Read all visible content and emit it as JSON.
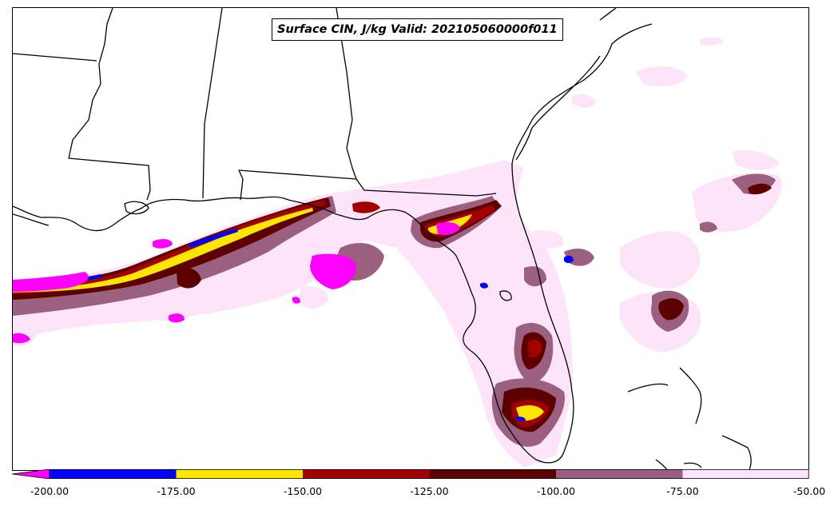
{
  "map": {
    "title": "Surface CIN, J/kg Valid: 202105060000f011",
    "field": "Surface CIN",
    "units": "J/kg",
    "valid": "202105060000f011"
  },
  "colorbar": {
    "extend": "min",
    "extend_color": "#ff00ff",
    "bins": [
      {
        "from": -200,
        "to": -175,
        "color": "#0000ff"
      },
      {
        "from": -175,
        "to": -150,
        "color": "#ffe600"
      },
      {
        "from": -150,
        "to": -125,
        "color": "#a30000"
      },
      {
        "from": -125,
        "to": -100,
        "color": "#5c0000"
      },
      {
        "from": -100,
        "to": -75,
        "color": "#9b5f80"
      },
      {
        "from": -75,
        "to": -50,
        "color": "#fde4f8"
      }
    ],
    "tick_labels": [
      "-200.00",
      "-175.00",
      "-150.00",
      "-125.00",
      "-100.00",
      "-75.00",
      "-50.00"
    ]
  },
  "colors": {
    "border_lines": "#000000",
    "background": "#ffffff"
  }
}
